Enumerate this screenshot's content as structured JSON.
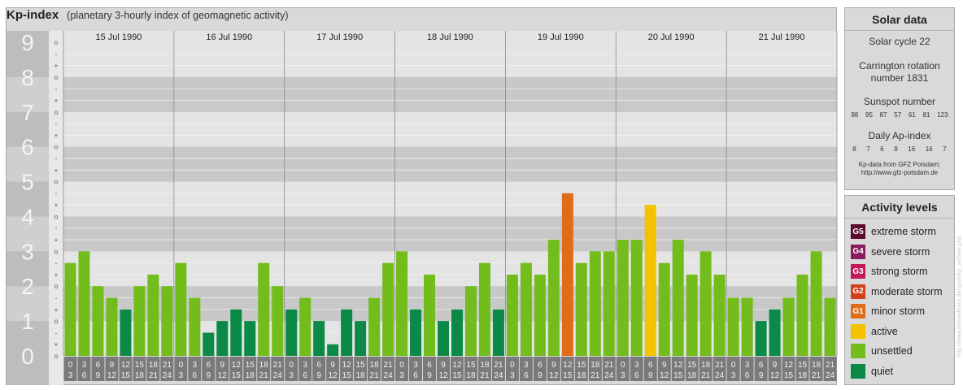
{
  "header": {
    "title": "Kp-index",
    "subtitle": "(planetary 3-hourly index of geomagnetic activity)"
  },
  "chart_data": {
    "type": "bar",
    "title": "Kp-index",
    "subtitle": "(planetary 3-hourly index of geomagnetic activity)",
    "ylim": [
      0,
      9
    ],
    "y_ticks": [
      "0",
      "1",
      "2",
      "3",
      "4",
      "5",
      "6",
      "7",
      "8",
      "9"
    ],
    "minor_labels": [
      "o",
      "+",
      "-",
      "o",
      "+",
      "-",
      "o",
      "+",
      "-",
      "o",
      "+",
      "-",
      "o",
      "+",
      "-",
      "o",
      "+",
      "-",
      "o",
      "+",
      "-",
      "o",
      "+",
      "-",
      "o",
      "+",
      "-",
      "o"
    ],
    "days": [
      "15 Jul 1990",
      "16 Jul 1990",
      "17 Jul 1990",
      "18 Jul 1990",
      "19 Jul 1990",
      "20 Jul 1990",
      "21 Jul 1990"
    ],
    "intervals": [
      [
        "0",
        "3"
      ],
      [
        "3",
        "6"
      ],
      [
        "6",
        "9"
      ],
      [
        "9",
        "12"
      ],
      [
        "12",
        "15"
      ],
      [
        "15",
        "18"
      ],
      [
        "18",
        "21"
      ],
      [
        "21",
        "24"
      ]
    ],
    "values": [
      [
        2.667,
        3.0,
        2.0,
        1.667,
        1.333,
        2.0,
        2.333,
        2.0
      ],
      [
        2.667,
        1.667,
        0.667,
        1.0,
        1.333,
        1.0,
        2.667,
        2.0
      ],
      [
        1.333,
        1.667,
        1.0,
        0.333,
        1.333,
        1.0,
        1.667,
        2.667
      ],
      [
        3.0,
        1.333,
        2.333,
        1.0,
        1.333,
        2.0,
        2.667,
        1.333
      ],
      [
        2.333,
        2.667,
        2.333,
        3.333,
        4.667,
        2.667,
        3.0,
        3.0
      ],
      [
        3.333,
        3.333,
        4.333,
        2.667,
        3.333,
        2.333,
        3.0,
        2.333
      ],
      [
        1.667,
        1.667,
        1.0,
        1.333,
        1.667,
        2.333,
        3.0,
        1.667
      ]
    ],
    "categories_legend": [
      "extreme storm",
      "severe storm",
      "strong storm",
      "moderate storm",
      "minor storm",
      "active",
      "unsettled",
      "quiet"
    ]
  },
  "colors": {
    "quiet": "#0a8a46",
    "unsettled": "#72bc1c",
    "active": "#f5c200",
    "minor_storm": "#e06c1a",
    "moderate_storm": "#d0401a",
    "strong_storm": "#c2185b",
    "severe_storm": "#8b1a5e",
    "extreme_storm": "#5c0a2e",
    "band_dark": "#c8c8c8",
    "band_light": "#e4e4e4",
    "label_box": "#7a7a7a"
  },
  "solar": {
    "title": "Solar data",
    "cycle": "Solar cycle 22",
    "carrington_line1": "Carrington rotation",
    "carrington_line2": "number 1831",
    "sunspot_label": "Sunspot number",
    "sunspot_numbers": [
      "98",
      "95",
      "87",
      "57",
      "61",
      "81",
      "123"
    ],
    "ap_label": "Daily Ap-index",
    "ap_numbers": [
      "8",
      "7",
      "6",
      "8",
      "16",
      "16",
      "7"
    ],
    "note_line1": "Kp-data from GFZ Potsdam:",
    "note_line2": "http://www.gfz-potsdam.de"
  },
  "activity": {
    "title": "Activity levels",
    "items": [
      {
        "code": "G5",
        "label": "extreme storm",
        "color": "#5c0a2e"
      },
      {
        "code": "G4",
        "label": "severe storm",
        "color": "#8b1a5e"
      },
      {
        "code": "G3",
        "label": "strong storm",
        "color": "#c2185b"
      },
      {
        "code": "G2",
        "label": "moderate storm",
        "color": "#d0401a"
      },
      {
        "code": "G1",
        "label": "minor storm",
        "color": "#e06c1a"
      },
      {
        "code": "",
        "label": "active",
        "color": "#f5c200"
      },
      {
        "code": "",
        "label": "unsettled",
        "color": "#72bc1c"
      },
      {
        "code": "",
        "label": "quiet",
        "color": "#0a8a46"
      }
    ]
  },
  "watermark": "http://www.tiefseehnetz.de/sport/kp_archive.php"
}
